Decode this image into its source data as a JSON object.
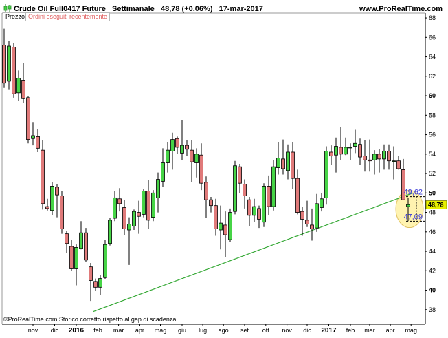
{
  "header": {
    "instrument": "Crude Oil Full0417 Future",
    "period": "Settimanale",
    "last": "48,78 (+0,06%)",
    "date": "17-mar-2017",
    "site": "www.ProRealTime.com",
    "icon": "candlestick-icon"
  },
  "tabs": [
    {
      "label": "Prezzo"
    },
    {
      "label": "Ordini eseguiti recentemente"
    }
  ],
  "footer": {
    "text": "©ProRealTime.com  Storico corretto rispetto al gap di scadenza."
  },
  "colors": {
    "up": "#46d446",
    "down": "#e07a7a",
    "trendline": "#34a834",
    "level_line": "#3838d8",
    "highlight": "#fff3b0",
    "price_tag": "#e7f000"
  },
  "chart_data": {
    "type": "candlestick",
    "frequency": "weekly",
    "ylim": [
      36.5,
      68.5
    ],
    "y_ticks": [
      "38",
      "40",
      "42",
      "44",
      "46",
      "48",
      "50",
      "52",
      "54",
      "56",
      "58",
      "60",
      "62",
      "64",
      "66",
      "68"
    ],
    "y_ticks_bold": [
      "40",
      "50",
      "60"
    ],
    "x_labels": [
      {
        "label": "nov",
        "week": 1
      },
      {
        "label": "dic",
        "week": 5.5
      },
      {
        "label": "2016",
        "week": 10,
        "bold": true
      },
      {
        "label": "feb",
        "week": 14.5
      },
      {
        "label": "mar",
        "week": 18.8
      },
      {
        "label": "apr",
        "week": 23.2
      },
      {
        "label": "mag",
        "week": 27.5
      },
      {
        "label": "giu",
        "week": 32
      },
      {
        "label": "lug",
        "week": 36.3
      },
      {
        "label": "ago",
        "week": 40.6
      },
      {
        "label": "set",
        "week": 45
      },
      {
        "label": "ott",
        "week": 49.4
      },
      {
        "label": "nov",
        "week": 53.8
      },
      {
        "label": "dic",
        "week": 58
      },
      {
        "label": "2017",
        "week": 62.5,
        "bold": true
      },
      {
        "label": "feb",
        "week": 67
      },
      {
        "label": "mar",
        "week": 71
      },
      {
        "label": "apr",
        "week": 75.3
      },
      {
        "label": "mag",
        "week": 79.6
      }
    ],
    "candles": [
      [
        65.2,
        66.9,
        60.8,
        61.3
      ],
      [
        61.5,
        65.6,
        60.6,
        65.1
      ],
      [
        65.0,
        65.4,
        59.8,
        60.2
      ],
      [
        60.3,
        62.6,
        59.5,
        61.8
      ],
      [
        61.6,
        63.4,
        59.3,
        59.7
      ],
      [
        59.8,
        60.0,
        55.1,
        55.5
      ],
      [
        55.6,
        57.3,
        54.9,
        55.9
      ],
      [
        55.8,
        56.6,
        54.2,
        54.6
      ],
      [
        54.4,
        55.4,
        48.3,
        48.9
      ],
      [
        48.6,
        49.4,
        48.2,
        48.4
      ],
      [
        48.2,
        51.1,
        47.7,
        50.7
      ],
      [
        50.6,
        50.9,
        47.5,
        49.8
      ],
      [
        49.7,
        50.2,
        45.8,
        46.3
      ],
      [
        45.8,
        46.1,
        43.8,
        44.8
      ],
      [
        44.5,
        45.2,
        42.0,
        42.2
      ],
      [
        42.2,
        44.7,
        40.5,
        44.4
      ],
      [
        44.3,
        47.1,
        44.2,
        45.9
      ],
      [
        45.9,
        46.4,
        42.9,
        43.1
      ],
      [
        42.4,
        42.8,
        38.9,
        41.0
      ],
      [
        40.9,
        41.2,
        39.9,
        40.3
      ],
      [
        40.3,
        41.6,
        39.5,
        41.2
      ],
      [
        41.3,
        45.2,
        41.1,
        44.7
      ],
      [
        44.8,
        47.4,
        44.6,
        47.2
      ],
      [
        47.4,
        50.2,
        47.1,
        49.5
      ],
      [
        49.4,
        50.5,
        48.1,
        48.9
      ],
      [
        48.5,
        49.3,
        45.7,
        46.3
      ],
      [
        46.2,
        47.5,
        42.6,
        46.8
      ],
      [
        46.6,
        48.3,
        46.2,
        48.1
      ],
      [
        48.0,
        49.2,
        45.8,
        47.6
      ],
      [
        47.8,
        50.4,
        47.5,
        50.2
      ],
      [
        50.2,
        51.3,
        46.3,
        47.2
      ],
      [
        47.5,
        50.3,
        47.1,
        50.0
      ],
      [
        49.5,
        52.1,
        48.0,
        51.4
      ],
      [
        51.2,
        54.6,
        50.6,
        53.1
      ],
      [
        53.1,
        55.2,
        52.1,
        54.4
      ],
      [
        54.3,
        56.2,
        52.4,
        55.5
      ],
      [
        55.6,
        55.8,
        54.0,
        54.7
      ],
      [
        54.1,
        57.5,
        53.4,
        54.9
      ],
      [
        54.9,
        55.4,
        53.8,
        54.5
      ],
      [
        54.4,
        55.4,
        51.1,
        53.2
      ],
      [
        53.1,
        54.6,
        51.6,
        54.0
      ],
      [
        53.9,
        55.1,
        50.3,
        51.0
      ],
      [
        51.1,
        51.7,
        47.4,
        49.3
      ],
      [
        49.3,
        49.6,
        48.0,
        48.7
      ],
      [
        48.7,
        49.4,
        45.6,
        46.3
      ],
      [
        46.2,
        48.7,
        44.2,
        46.9
      ],
      [
        46.7,
        48.1,
        43.4,
        45.7
      ],
      [
        45.2,
        48.4,
        45.0,
        48.0
      ],
      [
        48.1,
        53.3,
        47.8,
        52.8
      ],
      [
        52.7,
        53.0,
        50.0,
        51.0
      ],
      [
        50.9,
        51.4,
        48.4,
        49.7
      ],
      [
        49.3,
        49.6,
        46.6,
        47.7
      ],
      [
        47.7,
        49.4,
        47.0,
        48.6
      ],
      [
        48.4,
        48.7,
        46.4,
        47.3
      ],
      [
        47.0,
        51.0,
        46.5,
        50.7
      ],
      [
        50.7,
        51.8,
        47.7,
        48.6
      ],
      [
        48.6,
        53.4,
        48.2,
        52.7
      ],
      [
        52.6,
        55.2,
        51.9,
        53.6
      ],
      [
        53.5,
        55.5,
        51.9,
        52.5
      ],
      [
        52.3,
        55.0,
        51.4,
        54.2
      ],
      [
        54.2,
        55.2,
        50.4,
        51.5
      ],
      [
        51.5,
        52.4,
        47.8,
        48.0
      ],
      [
        48.1,
        48.6,
        45.6,
        47.3
      ],
      [
        47.2,
        49.2,
        46.5,
        46.8
      ],
      [
        46.7,
        48.4,
        45.1,
        46.3
      ],
      [
        46.4,
        49.9,
        46.0,
        48.9
      ],
      [
        48.5,
        50.0,
        48.1,
        49.4
      ],
      [
        49.5,
        54.8,
        48.8,
        54.3
      ],
      [
        54.2,
        54.9,
        52.9,
        53.8
      ],
      [
        53.9,
        55.7,
        52.1,
        54.8
      ],
      [
        54.7,
        56.8,
        53.4,
        54.0
      ],
      [
        54.0,
        55.7,
        53.9,
        54.7
      ],
      [
        54.7,
        55.1,
        53.4,
        54.7
      ],
      [
        54.8,
        56.5,
        54.1,
        55.1
      ],
      [
        55.0,
        55.6,
        52.9,
        53.7
      ],
      [
        53.8,
        55.4,
        52.2,
        53.4
      ],
      [
        53.4,
        55.5,
        52.2,
        53.3
      ],
      [
        53.4,
        54.4,
        51.9,
        54.0
      ],
      [
        54.0,
        54.5,
        52.1,
        53.5
      ],
      [
        53.5,
        55.0,
        52.4,
        54.3
      ],
      [
        54.3,
        55.0,
        52.4,
        53.3
      ],
      [
        53.3,
        54.8,
        51.4,
        53.3
      ],
      [
        53.3,
        53.8,
        52.4,
        52.5
      ],
      [
        52.4,
        53.5,
        49.3,
        49.3
      ],
      [
        48.6,
        49.5,
        47.1,
        48.8
      ]
    ],
    "candle_week_start": -5,
    "trendline": {
      "from": {
        "week": 13.5,
        "price": 37.8
      },
      "to": {
        "week": 80,
        "price": 50.0
      }
    },
    "levels": [
      {
        "price": 49.62,
        "label": "49,62"
      },
      {
        "price": 47.09,
        "label": "47,09"
      }
    ],
    "last_price": {
      "price": 48.78,
      "label": "48,78"
    },
    "grid": false,
    "legend": "none"
  }
}
